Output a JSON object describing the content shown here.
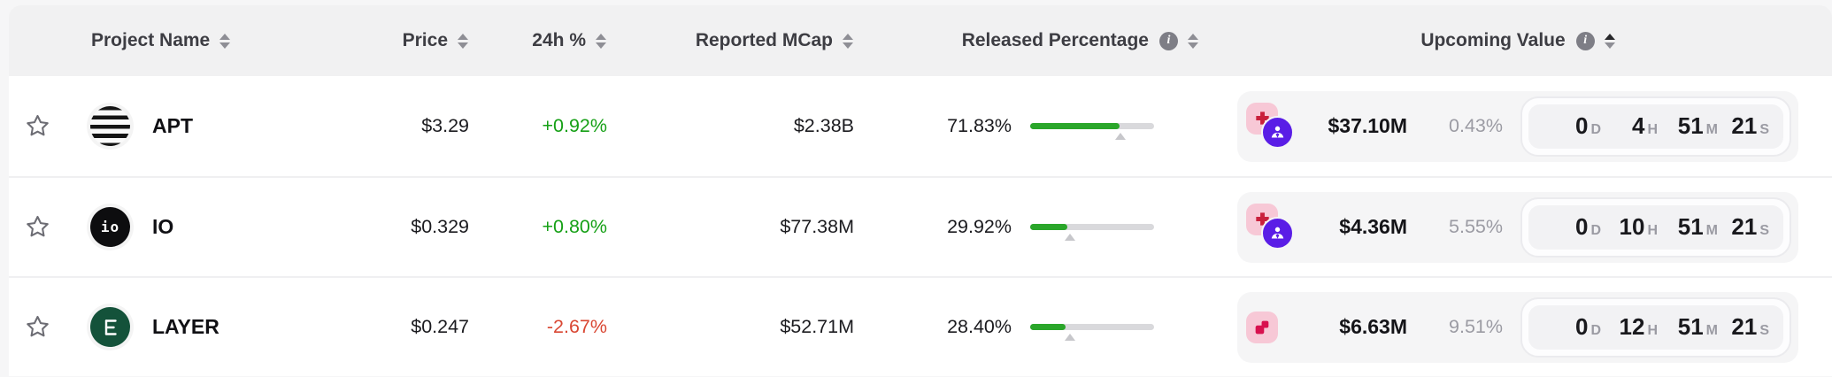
{
  "table": {
    "columns": [
      {
        "label": "Project Name",
        "sortable": true
      },
      {
        "label": "Price",
        "sortable": true
      },
      {
        "label": "24h %",
        "sortable": true
      },
      {
        "label": "Reported MCap",
        "sortable": true
      },
      {
        "label": "Released Percentage",
        "sortable": true,
        "info": true
      },
      {
        "label": "Upcoming Value",
        "sortable": true,
        "info": true,
        "sort_active": "asc"
      }
    ],
    "rows": [
      {
        "symbol": "APT",
        "price": "$3.29",
        "change_24h": "+0.92%",
        "change_color": "#16a016",
        "reported_mcap": "$2.38B",
        "released_pct": "71.83%",
        "released_pct_value": 71.83,
        "marker_pct": 72.5,
        "upcoming_value": "$37.10M",
        "upcoming_pct": "0.43%",
        "countdown": {
          "d": "0",
          "h": "4",
          "m": "51",
          "s": "21"
        },
        "badges": [
          "allocation-chart",
          "insider-person"
        ]
      },
      {
        "symbol": "IO",
        "price": "$0.329",
        "change_24h": "+0.80%",
        "change_color": "#16a016",
        "reported_mcap": "$77.38M",
        "released_pct": "29.92%",
        "released_pct_value": 29.92,
        "marker_pct": 32,
        "upcoming_value": "$4.36M",
        "upcoming_pct": "5.55%",
        "countdown": {
          "d": "0",
          "h": "10",
          "m": "51",
          "s": "21"
        },
        "badges": [
          "allocation-chart",
          "insider-person"
        ]
      },
      {
        "symbol": "LAYER",
        "price": "$0.247",
        "change_24h": "-2.67%",
        "change_color": "#d94733",
        "reported_mcap": "$52.71M",
        "released_pct": "28.40%",
        "released_pct_value": 28.4,
        "marker_pct": 32,
        "upcoming_value": "$6.63M",
        "upcoming_pct": "9.51%",
        "countdown": {
          "d": "0",
          "h": "12",
          "m": "51",
          "s": "21"
        },
        "badges": [
          "allocation-chart"
        ]
      }
    ]
  },
  "labels": {
    "info_icon": "i",
    "io_logo_text": "io",
    "day_unit": "D",
    "hour_unit": "H",
    "minute_unit": "M",
    "second_unit": "S"
  },
  "colors": {
    "positive_change": "#16a016",
    "negative_change": "#d94733",
    "progress_fill": "#2aa62a",
    "progress_track": "#d9d9dc",
    "muted_percent": "#9b9ba3",
    "badge_pink_bg": "#f7c8d6",
    "badge_cross_glyph": "#c9203c",
    "badge_steps_glyph": "#d8104e",
    "badge_purple_bg": "#5a1de6",
    "header_bg": "#f1f1f2",
    "layer_logo_bg": "#14523a",
    "io_logo_bg": "#0d0d0f"
  }
}
